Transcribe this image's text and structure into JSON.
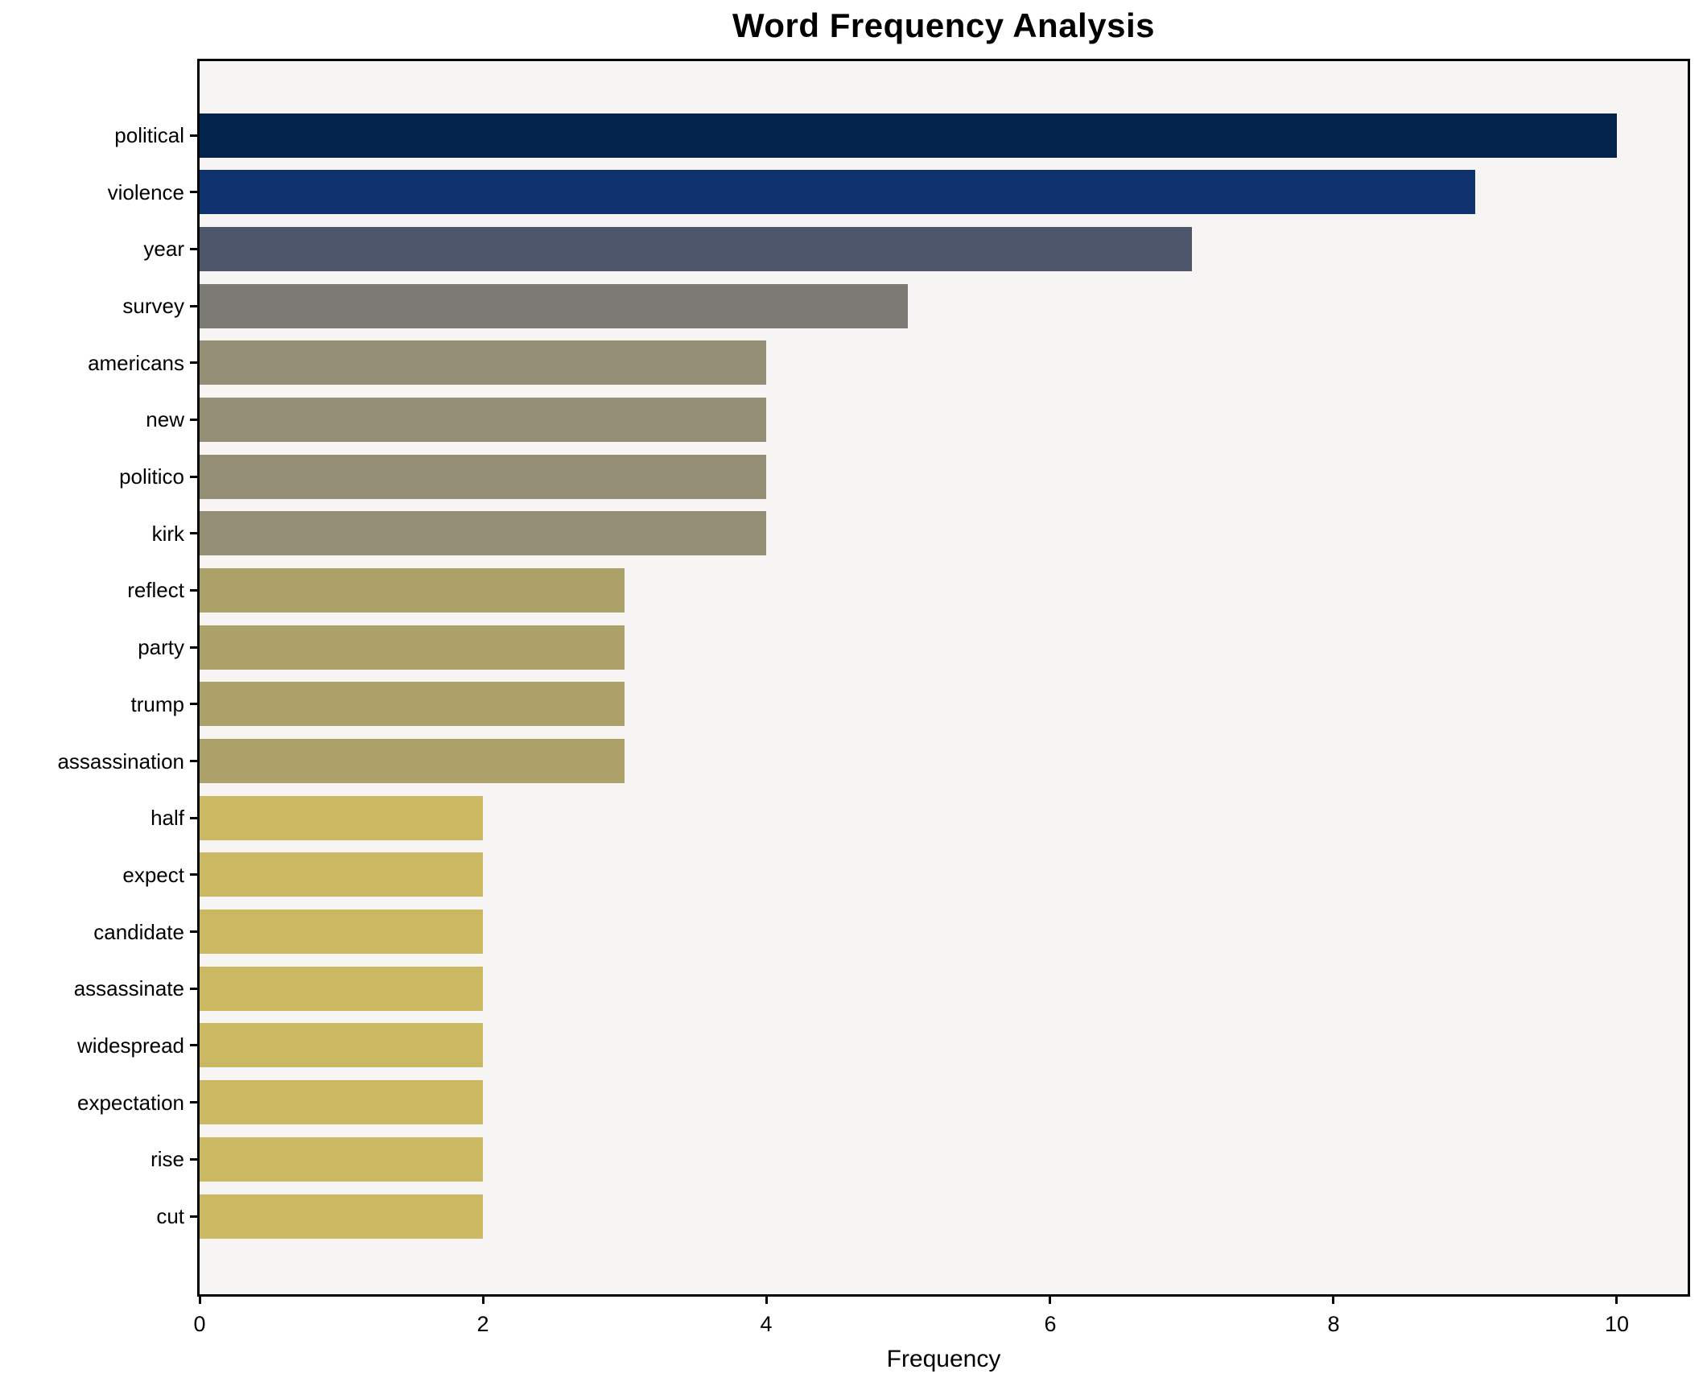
{
  "title": "Word Frequency Analysis",
  "chart_data": {
    "type": "bar",
    "orientation": "horizontal",
    "title": "Word Frequency Analysis",
    "xlabel": "Frequency",
    "ylabel": "",
    "categories": [
      "political",
      "violence",
      "year",
      "survey",
      "americans",
      "new",
      "politico",
      "kirk",
      "reflect",
      "party",
      "trump",
      "assassination",
      "half",
      "expect",
      "candidate",
      "assassinate",
      "widespread",
      "expectation",
      "rise",
      "cut"
    ],
    "values": [
      10,
      9,
      7,
      5,
      4,
      4,
      4,
      4,
      3,
      3,
      3,
      3,
      2,
      2,
      2,
      2,
      2,
      2,
      2,
      2
    ],
    "bar_colors": [
      "#02234c",
      "#0e336e",
      "#4d566b",
      "#7b7a74",
      "#948e75",
      "#948e75",
      "#948e75",
      "#948e75",
      "#ada16a",
      "#ada16a",
      "#ada16a",
      "#ada16a",
      "#cab863",
      "#cab863",
      "#cab863",
      "#cab863",
      "#cab863",
      "#cab863",
      "#cab863",
      "#cab863"
    ],
    "xticks": [
      0,
      2,
      4,
      6,
      8,
      10
    ],
    "xlim": [
      0,
      10.5
    ],
    "grid": false,
    "legend": null,
    "colors": {
      "plot_background": "#f6f5f3",
      "figure_background": "#ffffff",
      "spine": "#000000",
      "text": "#000000"
    }
  }
}
